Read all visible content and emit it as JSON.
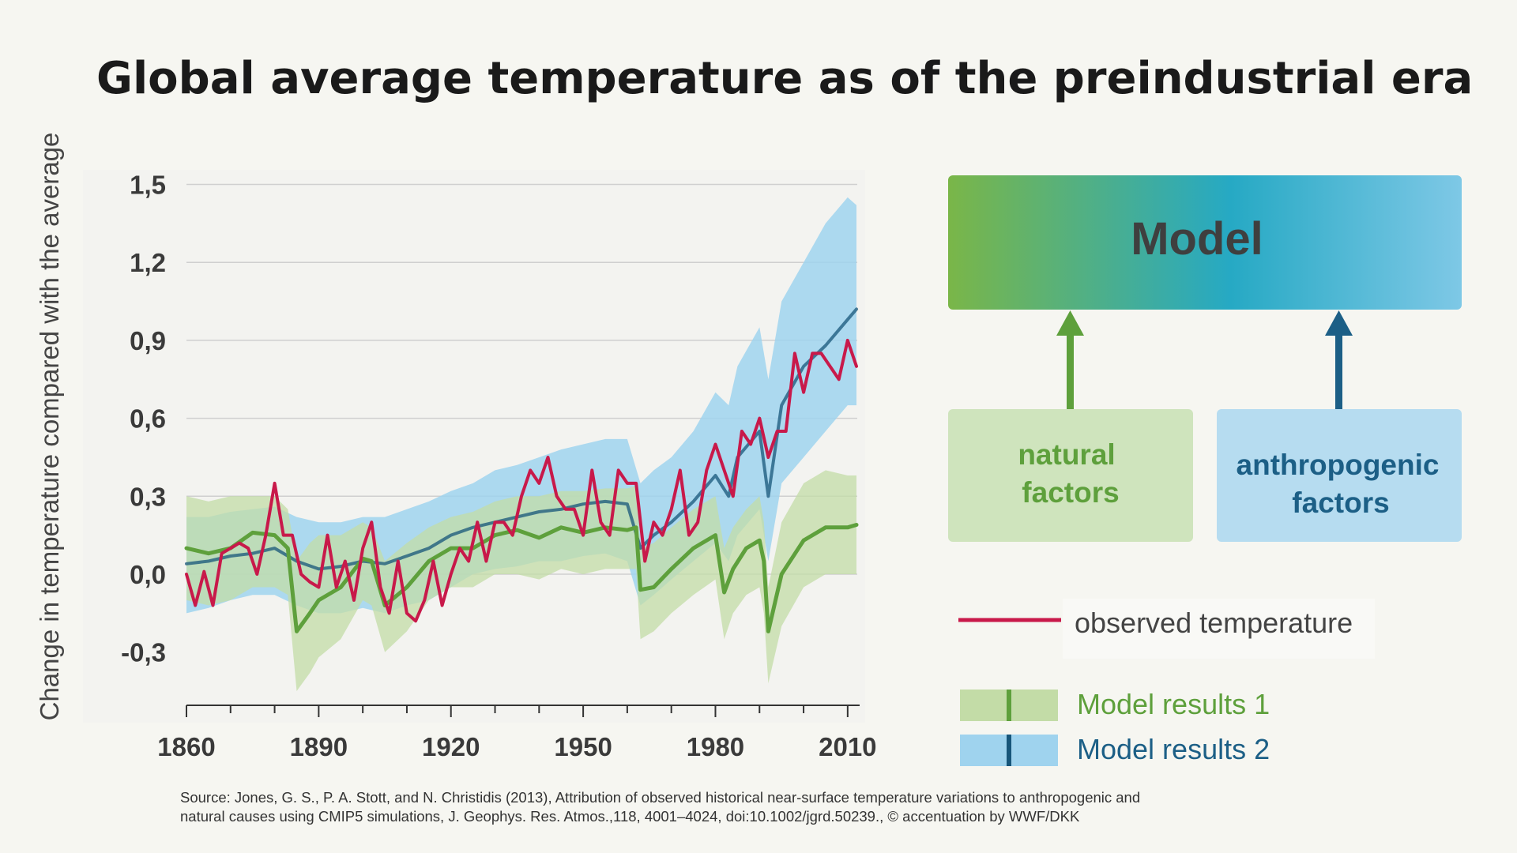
{
  "title": "Global average temperature as of the preindustrial era",
  "ylabel": "Change in temperature compared with the average",
  "source_line1": "Source: Jones, G. S., P. A. Stott, and N. Christidis (2013), Attribution of observed historical near-surface temperature variations to anthropogenic and",
  "source_line2": "natural causes using CMIP5 simulations, J. Geophys. Res. Atmos.,118, 4001–4024, doi:10.1002/jgrd.50239., © accentuation by WWF/DKK",
  "diagram": {
    "model_label": "Model",
    "natural_label_1": "natural",
    "natural_label_2": "factors",
    "anthro_label_1": "anthropogenic",
    "anthro_label_2": "factors"
  },
  "legend": {
    "observed": "observed temperature",
    "model1": "Model results 1",
    "model2": "Model results 2"
  },
  "colors": {
    "observed": "#c8194a",
    "model1_line": "#5ea03c",
    "model1_band": "#c3dca7",
    "model2_line": "#17567a",
    "model2_band": "#9fd3ee",
    "natural_box": "#cfe4bd",
    "anthro_box": "#b6dcf0",
    "natural_text": "#5ea03c",
    "anthro_text": "#1c5f86"
  },
  "chart_data": {
    "type": "line",
    "x_ticks": [
      1860,
      1890,
      1920,
      1950,
      1980,
      2010
    ],
    "x_tick_labels": [
      "1860",
      "1890",
      "1920",
      "1950",
      "1980",
      "2010"
    ],
    "y_ticks": [
      -0.3,
      0.0,
      0.3,
      0.6,
      0.9,
      1.2,
      1.5
    ],
    "y_tick_labels": [
      "-0,3",
      "0,0",
      "0,3",
      "0,6",
      "0,9",
      "1,2",
      "1,5"
    ],
    "xlim": [
      1860,
      2012
    ],
    "ylim": [
      -0.5,
      1.55
    ],
    "grid": "horizontal",
    "series": [
      {
        "name": "observed temperature",
        "role": "observed",
        "x": [
          1860,
          1862,
          1864,
          1866,
          1868,
          1870,
          1872,
          1874,
          1876,
          1878,
          1880,
          1882,
          1884,
          1886,
          1888,
          1890,
          1892,
          1894,
          1896,
          1898,
          1900,
          1902,
          1904,
          1906,
          1908,
          1910,
          1912,
          1914,
          1916,
          1918,
          1920,
          1922,
          1924,
          1926,
          1928,
          1930,
          1932,
          1934,
          1936,
          1938,
          1940,
          1942,
          1944,
          1946,
          1948,
          1950,
          1952,
          1954,
          1956,
          1958,
          1960,
          1962,
          1964,
          1966,
          1968,
          1970,
          1972,
          1974,
          1976,
          1978,
          1980,
          1982,
          1984,
          1986,
          1988,
          1990,
          1992,
          1994,
          1996,
          1998,
          2000,
          2002,
          2004,
          2006,
          2008,
          2010,
          2012
        ],
        "y": [
          0.0,
          -0.12,
          0.01,
          -0.12,
          0.08,
          0.1,
          0.12,
          0.1,
          0.0,
          0.15,
          0.35,
          0.15,
          0.15,
          0.0,
          -0.03,
          -0.05,
          0.15,
          -0.05,
          0.05,
          -0.1,
          0.1,
          0.2,
          -0.05,
          -0.15,
          0.05,
          -0.15,
          -0.18,
          -0.1,
          0.05,
          -0.12,
          0.0,
          0.1,
          0.05,
          0.2,
          0.05,
          0.2,
          0.2,
          0.15,
          0.3,
          0.4,
          0.35,
          0.45,
          0.3,
          0.25,
          0.25,
          0.15,
          0.4,
          0.2,
          0.15,
          0.4,
          0.35,
          0.35,
          0.05,
          0.2,
          0.15,
          0.25,
          0.4,
          0.15,
          0.2,
          0.4,
          0.5,
          0.4,
          0.3,
          0.55,
          0.5,
          0.6,
          0.45,
          0.55,
          0.55,
          0.85,
          0.7,
          0.85,
          0.85,
          0.8,
          0.75,
          0.9,
          0.8
        ]
      },
      {
        "name": "Model results 1",
        "role": "model1",
        "x": [
          1860,
          1865,
          1870,
          1875,
          1880,
          1883,
          1885,
          1888,
          1890,
          1895,
          1900,
          1902,
          1905,
          1910,
          1915,
          1920,
          1925,
          1930,
          1935,
          1940,
          1945,
          1950,
          1955,
          1960,
          1962,
          1963,
          1966,
          1970,
          1975,
          1980,
          1982,
          1984,
          1987,
          1990,
          1991,
          1992,
          1995,
          2000,
          2005,
          2010,
          2012
        ],
        "y": [
          0.1,
          0.08,
          0.1,
          0.16,
          0.15,
          0.1,
          -0.22,
          -0.15,
          -0.1,
          -0.05,
          0.06,
          0.05,
          -0.12,
          -0.05,
          0.05,
          0.1,
          0.1,
          0.15,
          0.17,
          0.14,
          0.18,
          0.16,
          0.18,
          0.17,
          0.18,
          -0.06,
          -0.05,
          0.02,
          0.1,
          0.15,
          -0.07,
          0.02,
          0.1,
          0.13,
          0.05,
          -0.22,
          0.0,
          0.13,
          0.18,
          0.18,
          0.19
        ]
      },
      {
        "name": "Model results 2",
        "role": "model2",
        "x": [
          1860,
          1865,
          1870,
          1875,
          1880,
          1885,
          1890,
          1895,
          1900,
          1905,
          1910,
          1915,
          1920,
          1925,
          1930,
          1935,
          1940,
          1945,
          1950,
          1955,
          1960,
          1963,
          1966,
          1970,
          1975,
          1980,
          1983,
          1985,
          1990,
          1992,
          1995,
          2000,
          2005,
          2010,
          2012
        ],
        "y": [
          0.04,
          0.05,
          0.07,
          0.08,
          0.1,
          0.05,
          0.02,
          0.03,
          0.05,
          0.04,
          0.07,
          0.1,
          0.15,
          0.18,
          0.2,
          0.22,
          0.24,
          0.25,
          0.27,
          0.28,
          0.27,
          0.1,
          0.15,
          0.2,
          0.28,
          0.38,
          0.3,
          0.45,
          0.55,
          0.3,
          0.65,
          0.8,
          0.88,
          0.98,
          1.02
        ]
      }
    ],
    "bands": [
      {
        "role": "model1",
        "x": [
          1860,
          1865,
          1870,
          1875,
          1880,
          1883,
          1885,
          1888,
          1890,
          1895,
          1900,
          1902,
          1905,
          1910,
          1915,
          1920,
          1925,
          1930,
          1935,
          1940,
          1945,
          1950,
          1955,
          1960,
          1962,
          1963,
          1966,
          1970,
          1975,
          1980,
          1982,
          1984,
          1987,
          1990,
          1991,
          1992,
          1995,
          2000,
          2005,
          2010,
          2012
        ],
        "upper": [
          0.3,
          0.28,
          0.3,
          0.3,
          0.3,
          0.25,
          0.05,
          0.12,
          0.15,
          0.15,
          0.2,
          0.18,
          0.05,
          0.12,
          0.18,
          0.22,
          0.24,
          0.28,
          0.3,
          0.3,
          0.32,
          0.32,
          0.33,
          0.33,
          0.34,
          0.1,
          0.12,
          0.18,
          0.25,
          0.3,
          0.1,
          0.18,
          0.25,
          0.3,
          0.2,
          -0.05,
          0.2,
          0.35,
          0.4,
          0.38,
          0.38
        ],
        "lower": [
          -0.1,
          -0.12,
          -0.1,
          -0.05,
          -0.05,
          -0.08,
          -0.45,
          -0.38,
          -0.32,
          -0.25,
          -0.1,
          -0.12,
          -0.3,
          -0.22,
          -0.1,
          -0.05,
          -0.05,
          0.0,
          0.0,
          -0.02,
          0.02,
          0.0,
          0.02,
          0.02,
          0.02,
          -0.25,
          -0.22,
          -0.15,
          -0.08,
          -0.02,
          -0.25,
          -0.15,
          -0.08,
          -0.05,
          -0.15,
          -0.42,
          -0.2,
          -0.05,
          0.0,
          0.0,
          0.0
        ]
      },
      {
        "role": "model2",
        "x": [
          1860,
          1865,
          1870,
          1875,
          1880,
          1885,
          1890,
          1895,
          1900,
          1905,
          1910,
          1915,
          1920,
          1925,
          1930,
          1935,
          1940,
          1945,
          1950,
          1955,
          1960,
          1963,
          1966,
          1970,
          1975,
          1980,
          1983,
          1985,
          1990,
          1992,
          1995,
          2000,
          2005,
          2010,
          2012
        ],
        "upper": [
          0.22,
          0.22,
          0.24,
          0.25,
          0.26,
          0.22,
          0.2,
          0.2,
          0.22,
          0.22,
          0.25,
          0.28,
          0.32,
          0.35,
          0.4,
          0.42,
          0.45,
          0.48,
          0.5,
          0.52,
          0.52,
          0.35,
          0.4,
          0.45,
          0.55,
          0.7,
          0.65,
          0.8,
          0.95,
          0.75,
          1.05,
          1.2,
          1.35,
          1.45,
          1.42
        ],
        "lower": [
          -0.15,
          -0.13,
          -0.1,
          -0.08,
          -0.08,
          -0.12,
          -0.15,
          -0.15,
          -0.13,
          -0.15,
          -0.12,
          -0.1,
          -0.05,
          0.0,
          0.02,
          0.03,
          0.05,
          0.05,
          0.07,
          0.08,
          0.05,
          -0.12,
          -0.08,
          -0.02,
          0.05,
          0.12,
          0.05,
          0.15,
          0.25,
          0.05,
          0.35,
          0.45,
          0.55,
          0.65,
          0.65
        ]
      }
    ]
  }
}
